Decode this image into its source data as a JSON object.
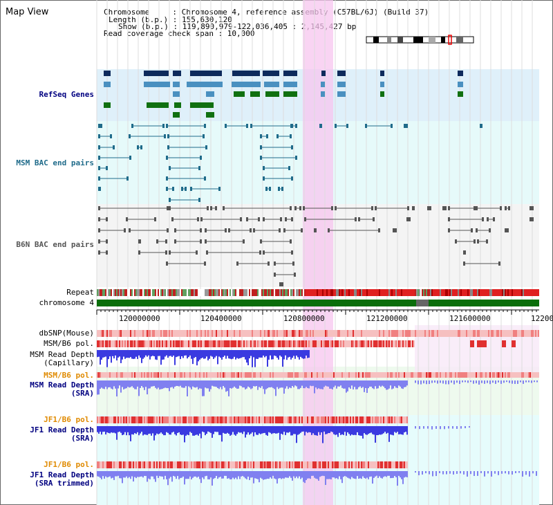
{
  "title": "Map View",
  "info": {
    "line1": "Chromosome     : Chromosome 4, reference assembly (C57BL/6J) (Build 37)",
    "line2": "Length (b.p.) : 155,630,120",
    "line3": "Show (b.p.) : 119,890,979-122,036,405 : 2,145,427 bp",
    "line4": "Read coverage check span : 10,000"
  },
  "tracks": {
    "refseq": "RefSeq Genes",
    "msm_bac": "MSM BAC end pairs",
    "b6n_bac": "B6N BAC end pairs",
    "repeat": "Repeat",
    "chromosome": "chromosome 4",
    "dbsnp": "dbSNP(Mouse)",
    "msm_b6_pol": "MSM/B6 pol.",
    "msm_depth_cap_1": "MSM Read Depth",
    "msm_depth_cap_2": "(Capillary)",
    "msm_b6_pol2": "MSM/B6 pol.",
    "msm_depth_sra_1": "MSM Read Depth",
    "msm_depth_sra_2": "(SRA)",
    "jf1_b6_pol": "JF1/B6 pol.",
    "jf1_depth_sra_1": "JF1 Read Depth",
    "jf1_depth_sra_2": "(SRA)",
    "jf1_b6_pol2": "JF1/B6 pol.",
    "jf1_depth_tr_1": "JF1 Read Depth",
    "jf1_depth_tr_2": "(SRA trimmed)"
  },
  "axis": {
    "ticks": [
      "120000000",
      "120400000",
      "120800000",
      "121200000",
      "121600000",
      "12200"
    ]
  },
  "colors": {
    "refseq_dark": "#0d2a5c",
    "refseq_mid": "#4a90c0",
    "refseq_green": "#107010",
    "msm_bac": "#1f6b8a",
    "b6n_bac": "#555555",
    "highlight": "#f7c6ef",
    "depth_blue": "#3a3ae0",
    "depth_light": "#8080f0",
    "label_blue": "#000080",
    "label_teal": "#1f6b8a",
    "label_orange": "#e08a00"
  }
}
